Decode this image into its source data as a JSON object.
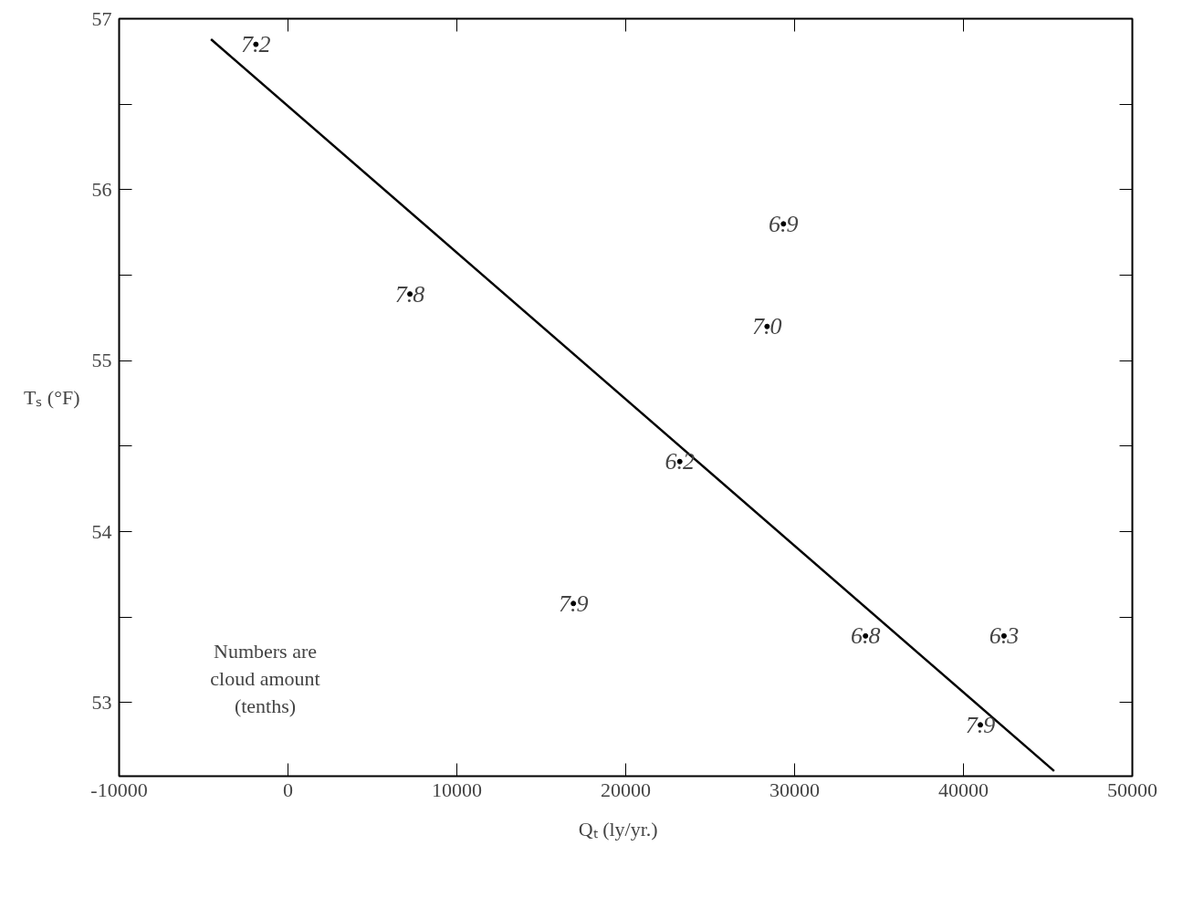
{
  "chart_data": {
    "type": "scatter",
    "xlabel": "Qₜ    (ly/yr.)",
    "ylabel": "Tₛ (°F)",
    "xlim": [
      -10000,
      50000
    ],
    "ylim": [
      52.57,
      57
    ],
    "xticks": [
      -10000,
      0,
      10000,
      20000,
      30000,
      40000,
      50000
    ],
    "yticks": [
      53,
      {
        "value": 53.5,
        "label": null
      },
      54,
      {
        "value": 54.5,
        "label": null
      },
      55,
      {
        "value": 55.5,
        "label": null
      },
      56,
      {
        "value": 56.5,
        "label": null
      },
      57
    ],
    "grid": false,
    "marker": "circle",
    "series": [
      {
        "color": "#000000",
        "x": [
          -1900,
          7220,
          29340,
          28370,
          23200,
          16900,
          34200,
          42400,
          41000
        ],
        "values": [
          56.85,
          55.39,
          55.8,
          55.2,
          54.41,
          53.58,
          53.39,
          53.39,
          52.87
        ]
      },
      {
        "type": "line",
        "marker": "none",
        "color": "#000000",
        "x": [
          -4560,
          45370
        ],
        "values": [
          56.88,
          52.6
        ]
      }
    ],
    "annotations": [
      {
        "text": "7.2",
        "x": -1900,
        "y": 56.85
      },
      {
        "text": "7.8",
        "x": 7220,
        "y": 55.39
      },
      {
        "text": "6.9",
        "x": 29340,
        "y": 55.8
      },
      {
        "text": "7.0",
        "x": 28370,
        "y": 55.2
      },
      {
        "text": "6.2",
        "x": 23200,
        "y": 54.41
      },
      {
        "text": "7.9",
        "x": 16900,
        "y": 53.58
      },
      {
        "text": "6.8",
        "x": 34200,
        "y": 53.39
      },
      {
        "text": "6.3",
        "x": 42400,
        "y": 53.39
      },
      {
        "text": "7.9",
        "x": 41000,
        "y": 52.87
      },
      "Numbers are cloud amount (tenths)"
    ]
  }
}
